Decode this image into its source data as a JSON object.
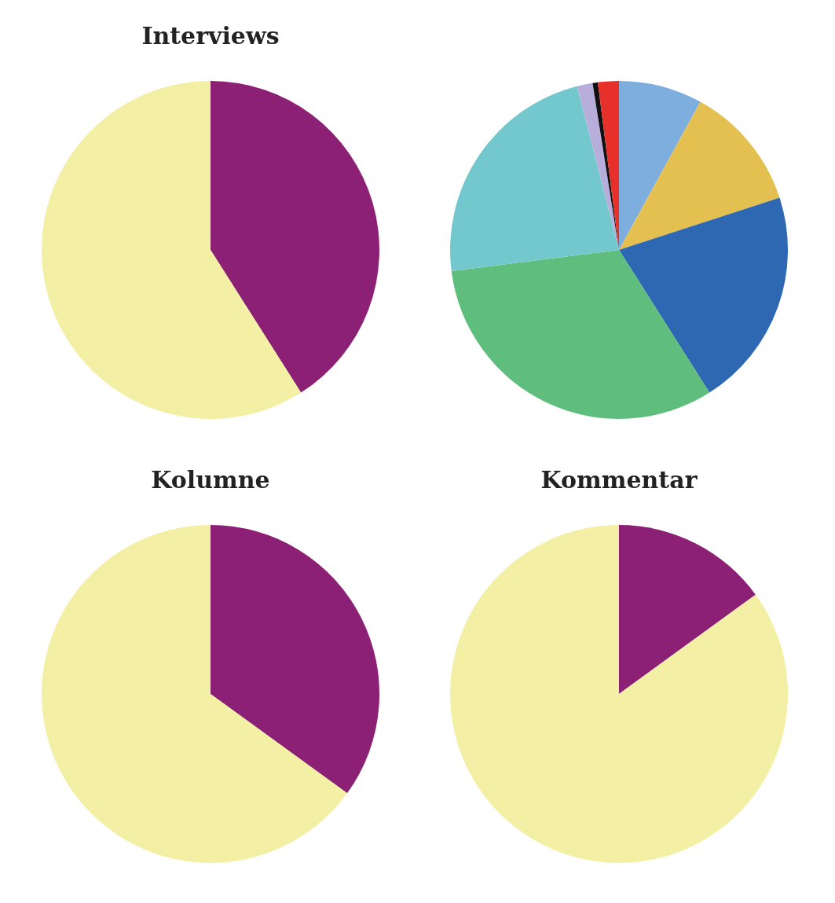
{
  "chart_data": [
    {
      "type": "pie",
      "title": "Interviews",
      "categories": [
        null,
        null
      ],
      "values": [
        41,
        59
      ],
      "colors": [
        "#8b2074",
        "#f3f0a6"
      ]
    },
    {
      "type": "pie",
      "categories": [
        null,
        null,
        null,
        null,
        null,
        null,
        null,
        null
      ],
      "values": [
        8,
        12,
        21,
        32,
        23,
        1.5,
        0.5,
        2
      ],
      "colors": [
        "#7eaedd",
        "#e4c050",
        "#2e68b3",
        "#5fbd7d",
        "#72c8cc",
        "#b8aedb",
        "#111111",
        "#e8302a"
      ]
    },
    {
      "type": "pie",
      "title": "Kolumne",
      "categories": [
        null,
        null
      ],
      "values": [
        35,
        65
      ],
      "colors": [
        "#8b2074",
        "#f3f0a6"
      ]
    },
    {
      "type": "pie",
      "title": "Kommentar",
      "categories": [
        null,
        null
      ],
      "values": [
        15,
        85
      ],
      "colors": [
        "#8b2074",
        "#f3f0a6"
      ]
    }
  ]
}
